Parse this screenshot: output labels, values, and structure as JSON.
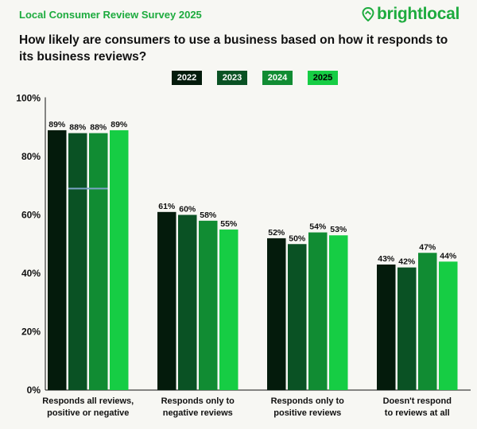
{
  "header": {
    "survey_title": "Local Consumer Review Survey 2025",
    "brand": "brightlocal",
    "question": "How likely are consumers to use a business based on how it responds to its business reviews?"
  },
  "colors": {
    "series": [
      "#041b0c",
      "#0a5224",
      "#118c33",
      "#16cd44"
    ],
    "legend_text": [
      "#ffffff",
      "#ffffff",
      "#ffffff",
      "#000000"
    ],
    "brand": "#1dab3e",
    "marker": "#7ba4c6"
  },
  "chart_data": {
    "type": "bar",
    "categories": [
      [
        "Responds all reviews,",
        "positive or negative"
      ],
      [
        "Responds only to",
        "negative  reviews"
      ],
      [
        "Responds only to",
        "positive  reviews"
      ],
      [
        "Doesn't respond",
        "to reviews at all"
      ]
    ],
    "series": [
      {
        "name": "2022",
        "values": [
          89,
          61,
          52,
          43
        ]
      },
      {
        "name": "2023",
        "values": [
          88,
          60,
          50,
          42
        ]
      },
      {
        "name": "2024",
        "values": [
          88,
          58,
          54,
          47
        ]
      },
      {
        "name": "2025",
        "values": [
          89,
          55,
          53,
          44
        ]
      }
    ],
    "value_suffix": "%",
    "ylim": [
      0,
      100
    ],
    "yticks": [
      0,
      20,
      40,
      60,
      80,
      100
    ],
    "ytick_labels": [
      "0%",
      "20%",
      "40%",
      "60%",
      "80%",
      "100%"
    ],
    "grid": false,
    "legend_position": "top",
    "marker_value": 69
  }
}
